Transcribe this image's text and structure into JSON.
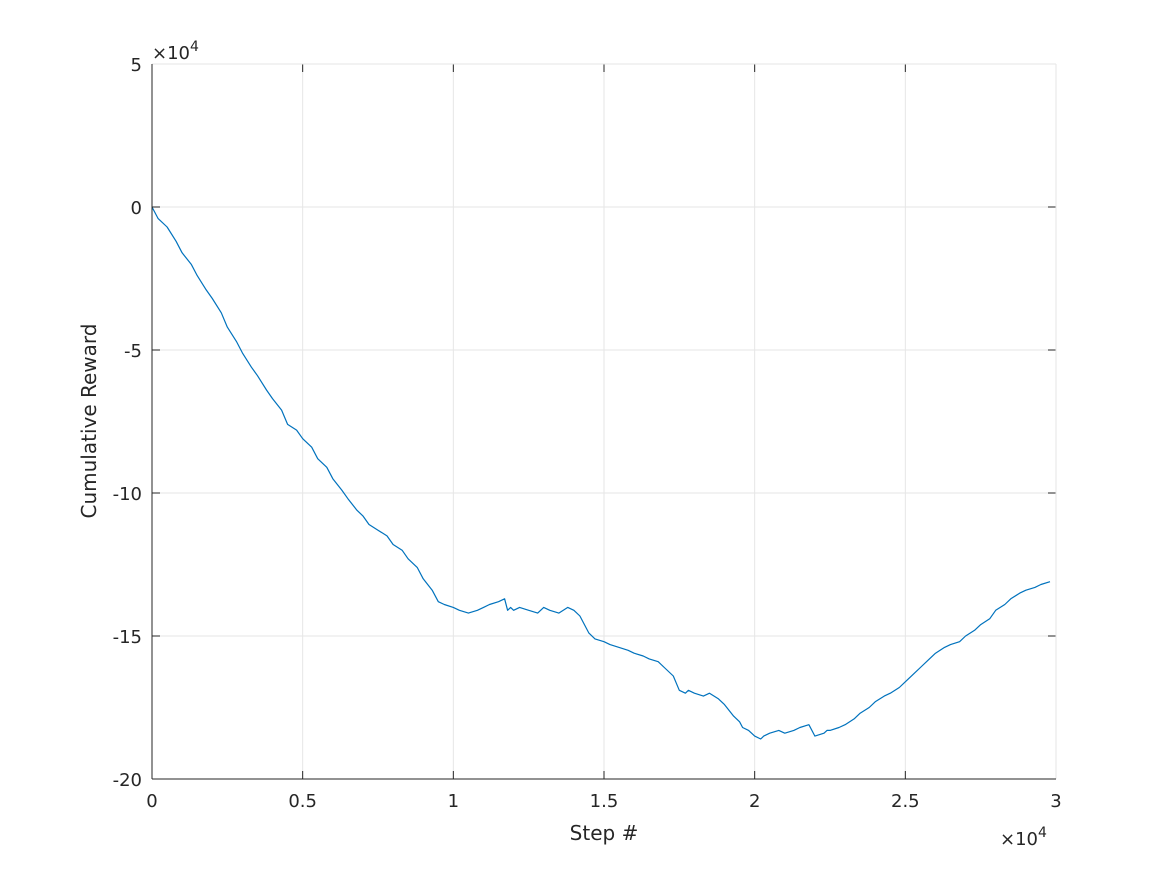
{
  "chart_data": {
    "type": "line",
    "title": "",
    "xlabel": "Step #",
    "ylabel": "Cumulative Reward",
    "xlim": [
      0,
      3
    ],
    "ylim": [
      -20,
      5
    ],
    "x_exponent_label": "×10",
    "x_exponent_power": "4",
    "y_exponent_label": "×10",
    "y_exponent_power": "4",
    "x_ticks": [
      0,
      0.5,
      1,
      1.5,
      2,
      2.5,
      3
    ],
    "x_tick_labels": [
      "0",
      "0.5",
      "1",
      "1.5",
      "2",
      "2.5",
      "3"
    ],
    "y_ticks": [
      5,
      0,
      -5,
      -10,
      -15,
      -20
    ],
    "y_tick_labels": [
      "5",
      "0",
      "-5",
      "-10",
      "-15",
      "-20"
    ],
    "grid": true,
    "line_color": "#0072BD",
    "series": [
      {
        "x": [
          0,
          0.02,
          0.05,
          0.08,
          0.1,
          0.13,
          0.15,
          0.18,
          0.2,
          0.23,
          0.25,
          0.28,
          0.3,
          0.33,
          0.35,
          0.38,
          0.4,
          0.43,
          0.45,
          0.48,
          0.5,
          0.53,
          0.55,
          0.58,
          0.6,
          0.63,
          0.65,
          0.68,
          0.7,
          0.72,
          0.75,
          0.78,
          0.8,
          0.83,
          0.85,
          0.88,
          0.9,
          0.93,
          0.95,
          0.97,
          1.0,
          1.02,
          1.05,
          1.08,
          1.1,
          1.12,
          1.15,
          1.17,
          1.18,
          1.19,
          1.2,
          1.22,
          1.25,
          1.28,
          1.3,
          1.32,
          1.35,
          1.38,
          1.4,
          1.42,
          1.45,
          1.47,
          1.5,
          1.52,
          1.55,
          1.58,
          1.6,
          1.63,
          1.65,
          1.68,
          1.7,
          1.73,
          1.75,
          1.77,
          1.78,
          1.8,
          1.83,
          1.85,
          1.88,
          1.9,
          1.93,
          1.95,
          1.96,
          1.98,
          2.0,
          2.02,
          2.03,
          2.05,
          2.08,
          2.1,
          2.13,
          2.15,
          2.18,
          2.2,
          2.23,
          2.24,
          2.25,
          2.28,
          2.3,
          2.33,
          2.35,
          2.38,
          2.4,
          2.43,
          2.45,
          2.48,
          2.5,
          2.53,
          2.55,
          2.58,
          2.6,
          2.63,
          2.65,
          2.68,
          2.7,
          2.73,
          2.75,
          2.78,
          2.8,
          2.83,
          2.85,
          2.88,
          2.9,
          2.93,
          2.95,
          2.98
        ],
        "y": [
          0,
          -0.4,
          -0.7,
          -1.2,
          -1.6,
          -2.0,
          -2.4,
          -2.9,
          -3.2,
          -3.7,
          -4.2,
          -4.7,
          -5.1,
          -5.6,
          -5.9,
          -6.4,
          -6.7,
          -7.1,
          -7.6,
          -7.8,
          -8.1,
          -8.4,
          -8.8,
          -9.1,
          -9.5,
          -9.9,
          -10.2,
          -10.6,
          -10.8,
          -11.1,
          -11.3,
          -11.5,
          -11.8,
          -12.0,
          -12.3,
          -12.6,
          -13.0,
          -13.4,
          -13.8,
          -13.9,
          -14.0,
          -14.1,
          -14.2,
          -14.1,
          -14.0,
          -13.9,
          -13.8,
          -13.7,
          -14.1,
          -14.0,
          -14.1,
          -14.0,
          -14.1,
          -14.2,
          -14.0,
          -14.1,
          -14.2,
          -14.0,
          -14.1,
          -14.3,
          -14.9,
          -15.1,
          -15.2,
          -15.3,
          -15.4,
          -15.5,
          -15.6,
          -15.7,
          -15.8,
          -15.9,
          -16.1,
          -16.4,
          -16.9,
          -17.0,
          -16.9,
          -17.0,
          -17.1,
          -17.0,
          -17.2,
          -17.4,
          -17.8,
          -18.0,
          -18.2,
          -18.3,
          -18.5,
          -18.6,
          -18.5,
          -18.4,
          -18.3,
          -18.4,
          -18.3,
          -18.2,
          -18.1,
          -18.5,
          -18.4,
          -18.3,
          -18.3,
          -18.2,
          -18.1,
          -17.9,
          -17.7,
          -17.5,
          -17.3,
          -17.1,
          -17.0,
          -16.8,
          -16.6,
          -16.3,
          -16.1,
          -15.8,
          -15.6,
          -15.4,
          -15.3,
          -15.2,
          -15.0,
          -14.8,
          -14.6,
          -14.4,
          -14.1,
          -13.9,
          -13.7,
          -13.5,
          -13.4,
          -13.3,
          -13.2,
          -13.1
        ]
      }
    ]
  }
}
